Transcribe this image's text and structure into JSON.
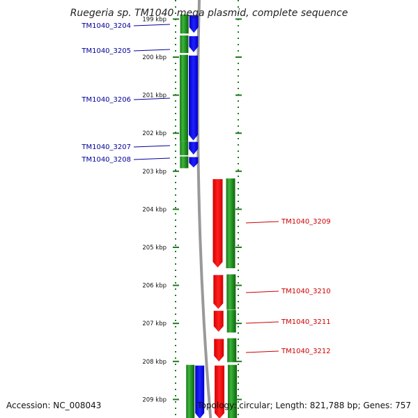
{
  "title": "Ruegeria sp. TM1040 mega plasmid, complete sequence",
  "footer": {
    "accession": "Accession: NC_008043",
    "summary": "Topology: circular; Length: 821,788 bp; Genes: 757"
  },
  "colors": {
    "forward_cds": "#0000ee",
    "reverse_cds": "#ee0000",
    "gene": "#1e8c1e",
    "forward_label": "#00009a",
    "reverse_label": "#cc0000",
    "backbone": "#999999",
    "tick": "#1f7a1f"
  },
  "scale": {
    "unit": "kbp",
    "ticks": [
      {
        "pos": 199,
        "label": "199 kbp"
      },
      {
        "pos": 200,
        "label": "200 kbp"
      },
      {
        "pos": 201,
        "label": "201 kbp"
      },
      {
        "pos": 202,
        "label": "202 kbp"
      },
      {
        "pos": 203,
        "label": "203 kbp"
      },
      {
        "pos": 204,
        "label": "204 kbp"
      },
      {
        "pos": 205,
        "label": "205 kbp"
      },
      {
        "pos": 206,
        "label": "206 kbp"
      },
      {
        "pos": 207,
        "label": "207 kbp"
      },
      {
        "pos": 208,
        "label": "208 kbp"
      },
      {
        "pos": 209,
        "label": "209 kbp"
      }
    ]
  },
  "features": [
    {
      "name": "TM1040_3204",
      "strand": "+",
      "start": 198.88,
      "end": 199.38
    },
    {
      "name": "TM1040_3205",
      "strand": "+",
      "start": 199.43,
      "end": 199.89
    },
    {
      "name": "TM1040_3206",
      "strand": "+",
      "start": 199.94,
      "end": 202.21
    },
    {
      "name": "TM1040_3207",
      "strand": "+",
      "start": 202.21,
      "end": 202.58
    },
    {
      "name": "TM1040_3208",
      "strand": "+",
      "start": 202.61,
      "end": 202.92
    },
    {
      "name": "TM1040_3209",
      "strand": "-",
      "start": 203.19,
      "end": 205.55
    },
    {
      "name": "TM1040_3210",
      "strand": "-",
      "start": 205.71,
      "end": 206.64
    },
    {
      "name": "TM1040_3211",
      "strand": "-",
      "start": 206.65,
      "end": 207.24
    },
    {
      "name": "TM1040_3212",
      "strand": "-",
      "start": 207.39,
      "end": 208.02
    },
    {
      "name": "",
      "strand": "-",
      "start": 208.09,
      "end": 209.6
    },
    {
      "name": "",
      "strand": "+",
      "start": 208.09,
      "end": 209.6
    }
  ]
}
